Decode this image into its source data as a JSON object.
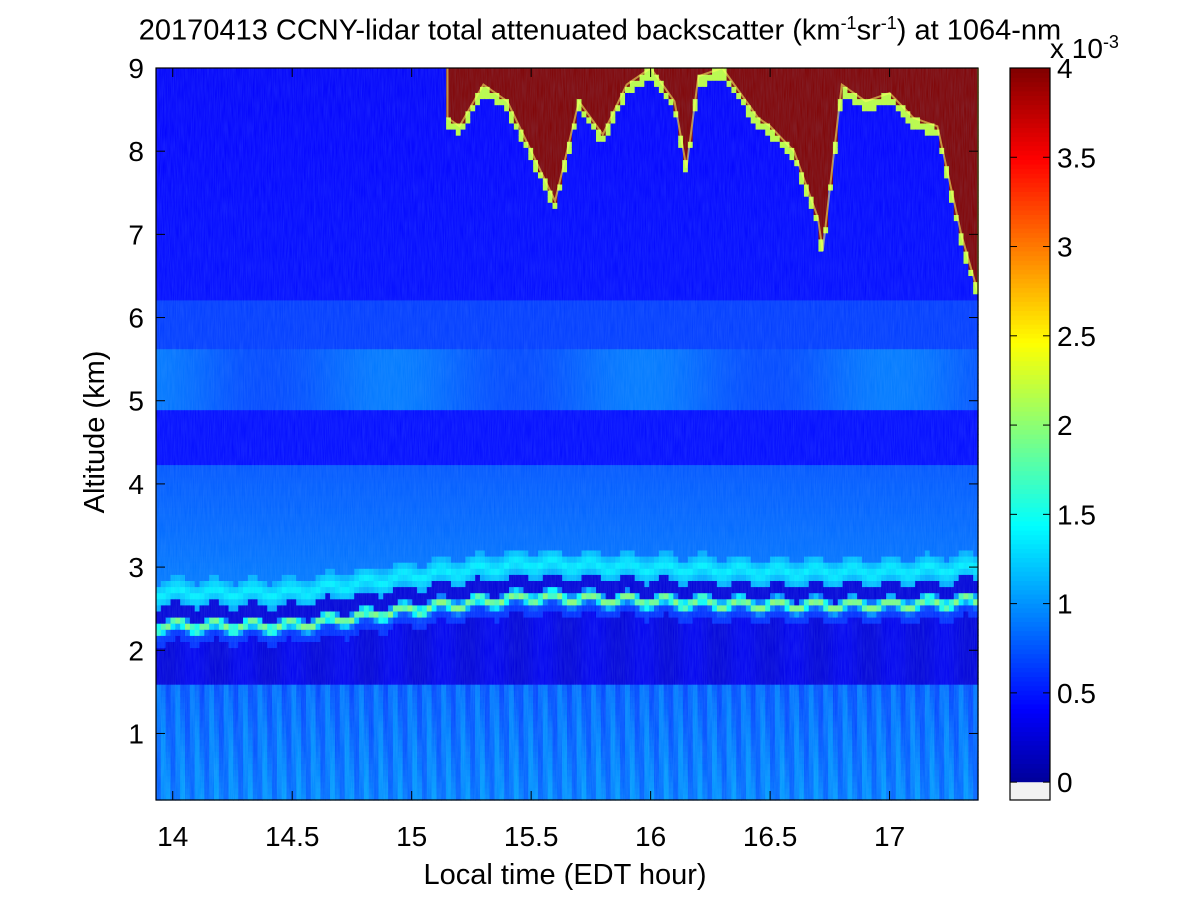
{
  "chart_data": {
    "type": "heatmap",
    "title": {
      "prefix": "20170413 CCNY-lidar total attenuated backscatter (km",
      "sup1": "-1",
      "mid": "sr",
      "sup2": "-1",
      "suffix": ") at 1064-nm"
    },
    "xlabel": "Local time (EDT hour)",
    "ylabel": "Altitude (km)",
    "xlim": [
      13.93,
      17.37
    ],
    "ylim": [
      0.2,
      9
    ],
    "x_ticks": [
      14,
      14.5,
      15,
      15.5,
      16,
      16.5,
      17
    ],
    "x_tick_labels": [
      "14",
      "14.5",
      "15",
      "15.5",
      "16",
      "16.5",
      "17"
    ],
    "y_ticks": [
      1,
      2,
      3,
      4,
      5,
      6,
      7,
      8,
      9
    ],
    "y_tick_labels": [
      "1",
      "2",
      "3",
      "4",
      "5",
      "6",
      "7",
      "8",
      "9"
    ],
    "colorbar": {
      "colormap": "jet",
      "clim": [
        -0.1,
        4
      ],
      "ticks": [
        0,
        0.5,
        1,
        1.5,
        2,
        2.5,
        3,
        3.5,
        4
      ],
      "tick_labels": [
        "0",
        "0.5",
        "1",
        "1.5",
        "2",
        "2.5",
        "3",
        "3.5",
        "4"
      ],
      "multiplier_base": "x 10",
      "multiplier_exp": "-3"
    },
    "features": {
      "near_surface_layer": {
        "altitude_range_km": [
          0.2,
          1.6
        ],
        "value": 0.95
      },
      "clean_layer": {
        "altitude_range_km": [
          1.6,
          2.35
        ],
        "value": 0.3
      },
      "aerosol_layer_top_peak": {
        "x": [
          14.0,
          14.5,
          15.0,
          15.5,
          16.0,
          16.5,
          17.0,
          17.35
        ],
        "y": [
          2.3,
          2.3,
          2.5,
          2.65,
          2.6,
          2.55,
          2.55,
          2.6
        ],
        "value": 2.0
      },
      "elevated_layer": {
        "altitude_range_km": [
          2.7,
          3.2
        ],
        "value": 1.4
      },
      "cirrus_cloud_base": {
        "x": [
          15.15,
          15.2,
          15.3,
          15.4,
          15.5,
          15.6,
          15.7,
          15.8,
          15.9,
          16.0,
          16.1,
          16.15,
          16.2,
          16.3,
          16.45,
          16.5,
          16.6,
          16.7,
          16.72,
          16.8,
          16.9,
          17.0,
          17.1,
          17.2,
          17.3,
          17.37
        ],
        "y": [
          8.4,
          8.3,
          8.8,
          8.6,
          8.0,
          7.4,
          8.6,
          8.2,
          8.8,
          9.0,
          8.6,
          7.8,
          8.9,
          9.0,
          8.4,
          8.3,
          8.0,
          7.2,
          6.8,
          8.8,
          8.6,
          8.7,
          8.4,
          8.3,
          7.0,
          6.3
        ],
        "value": 4.0
      }
    }
  }
}
